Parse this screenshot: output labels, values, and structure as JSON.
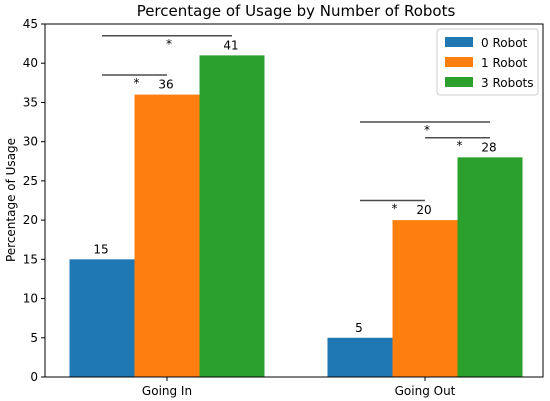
{
  "chart_data": {
    "type": "bar",
    "title": "Percentage of Usage by Number of Robots",
    "xlabel": "",
    "ylabel": "Percentage of Usage",
    "categories": [
      "Going In",
      "Going Out"
    ],
    "ylim": [
      0,
      45
    ],
    "yticks": [
      0,
      5,
      10,
      15,
      20,
      25,
      30,
      35,
      40,
      45
    ],
    "grid": false,
    "legend_position": "top-right",
    "series": [
      {
        "name": "0 Robot",
        "color": "#1f77b4",
        "values": [
          15,
          5
        ],
        "labels": [
          "15",
          "5"
        ]
      },
      {
        "name": "1 Robot",
        "color": "#ff7f0e",
        "values": [
          36,
          20
        ],
        "labels": [
          "36",
          "20"
        ]
      },
      {
        "name": "3 Robots",
        "color": "#2ca02c",
        "values": [
          41,
          28
        ],
        "labels": [
          "41",
          "28"
        ]
      }
    ],
    "significance": [
      {
        "category": 0,
        "from_series": 0,
        "to_series": 1,
        "level": 38.5,
        "label": "*"
      },
      {
        "category": 0,
        "from_series": 0,
        "to_series": 2,
        "level": 43.5,
        "label": "*"
      },
      {
        "category": 1,
        "from_series": 0,
        "to_series": 1,
        "level": 22.5,
        "label": "*"
      },
      {
        "category": 1,
        "from_series": 1,
        "to_series": 2,
        "level": 30.5,
        "label": "*"
      },
      {
        "category": 1,
        "from_series": 0,
        "to_series": 2,
        "level": 32.5,
        "label": "*"
      }
    ]
  }
}
